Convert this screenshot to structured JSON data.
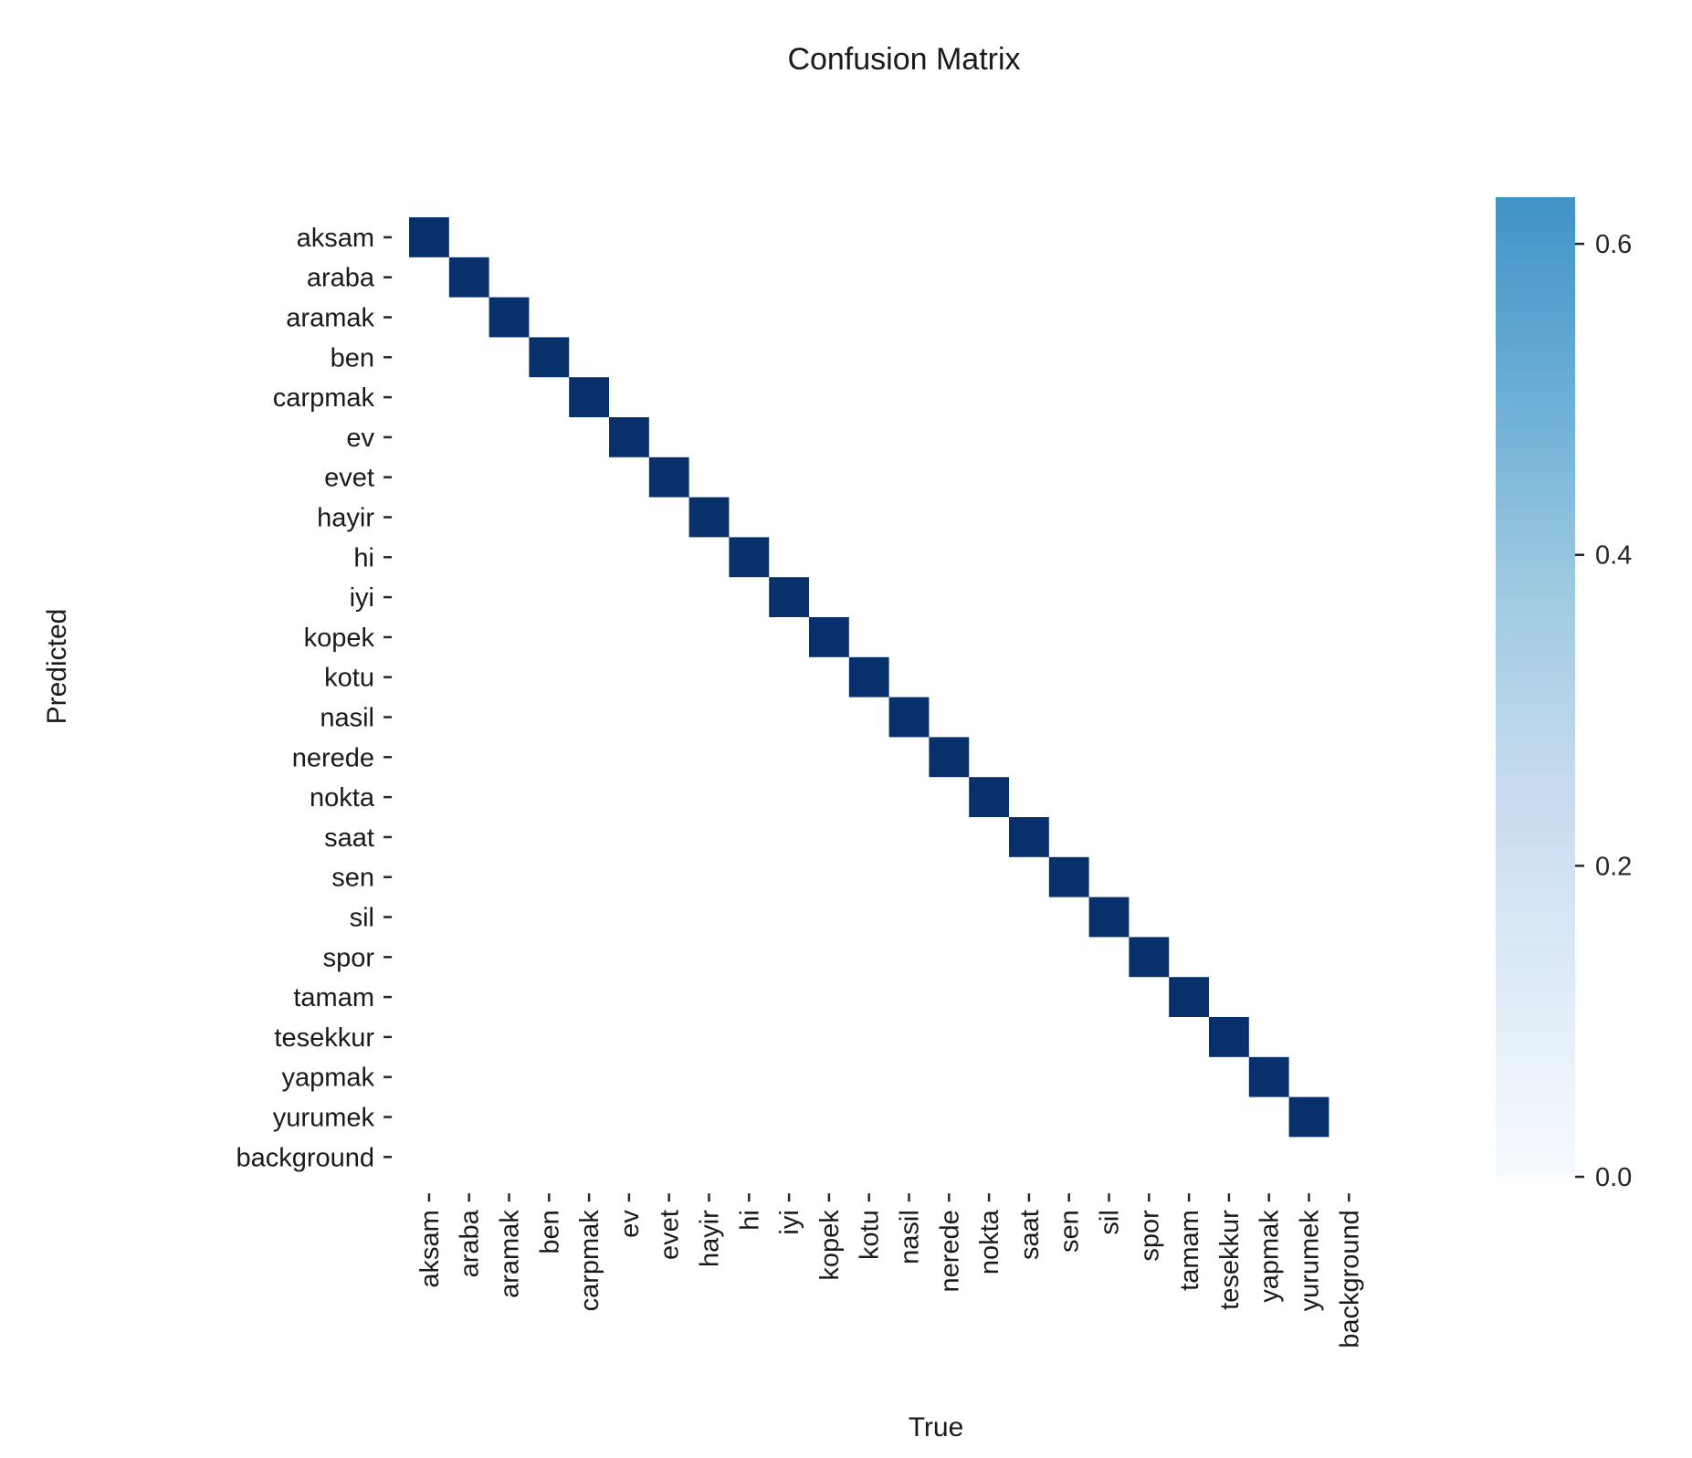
{
  "chart_data": {
    "type": "heatmap",
    "title": "Confusion Matrix",
    "xlabel": "True",
    "ylabel": "Predicted",
    "labels": [
      "aksam",
      "araba",
      "aramak",
      "ben",
      "carpmak",
      "ev",
      "evet",
      "hayir",
      "hi",
      "iyi",
      "kopek",
      "kotu",
      "nasil",
      "nerede",
      "nokta",
      "saat",
      "sen",
      "sil",
      "spor",
      "tamam",
      "tesekkur",
      "yapmak",
      "yurumek",
      "background"
    ],
    "diagonal_cells": [
      {
        "predicted": "aksam",
        "true": "aksam"
      },
      {
        "predicted": "araba",
        "true": "araba"
      },
      {
        "predicted": "aramak",
        "true": "aramak"
      },
      {
        "predicted": "ben",
        "true": "ben"
      },
      {
        "predicted": "carpmak",
        "true": "carpmak"
      },
      {
        "predicted": "ev",
        "true": "ev"
      },
      {
        "predicted": "evet",
        "true": "evet"
      },
      {
        "predicted": "hayir",
        "true": "hayir"
      },
      {
        "predicted": "hi",
        "true": "hi"
      },
      {
        "predicted": "iyi",
        "true": "iyi"
      },
      {
        "predicted": "kopek",
        "true": "kopek"
      },
      {
        "predicted": "kotu",
        "true": "kotu"
      },
      {
        "predicted": "nasil",
        "true": "nasil"
      },
      {
        "predicted": "nerede",
        "true": "nerede"
      },
      {
        "predicted": "nokta",
        "true": "nokta"
      },
      {
        "predicted": "saat",
        "true": "saat"
      },
      {
        "predicted": "sen",
        "true": "sen"
      },
      {
        "predicted": "sil",
        "true": "sil"
      },
      {
        "predicted": "spor",
        "true": "spor"
      },
      {
        "predicted": "tamam",
        "true": "tamam"
      },
      {
        "predicted": "tesekkur",
        "true": "tesekkur"
      },
      {
        "predicted": "yapmak",
        "true": "yapmak"
      },
      {
        "predicted": "yurumek",
        "true": "yurumek"
      }
    ],
    "cell_value_note": "",
    "diagonal_color": "#08306b",
    "empty_color": "#ffffff",
    "colorbar": {
      "range": [
        0,
        0.63
      ],
      "ticks": [
        0.0,
        0.2,
        0.4,
        0.6
      ],
      "tick_labels": [
        "0.0",
        "0.2",
        "0.4",
        "0.6"
      ],
      "colors": [
        "#f7fbff",
        "#deebf7",
        "#c6dbef",
        "#9ecae1",
        "#6baed6",
        "#4292c6"
      ]
    },
    "grid": false,
    "legend": "colorbar-right"
  }
}
